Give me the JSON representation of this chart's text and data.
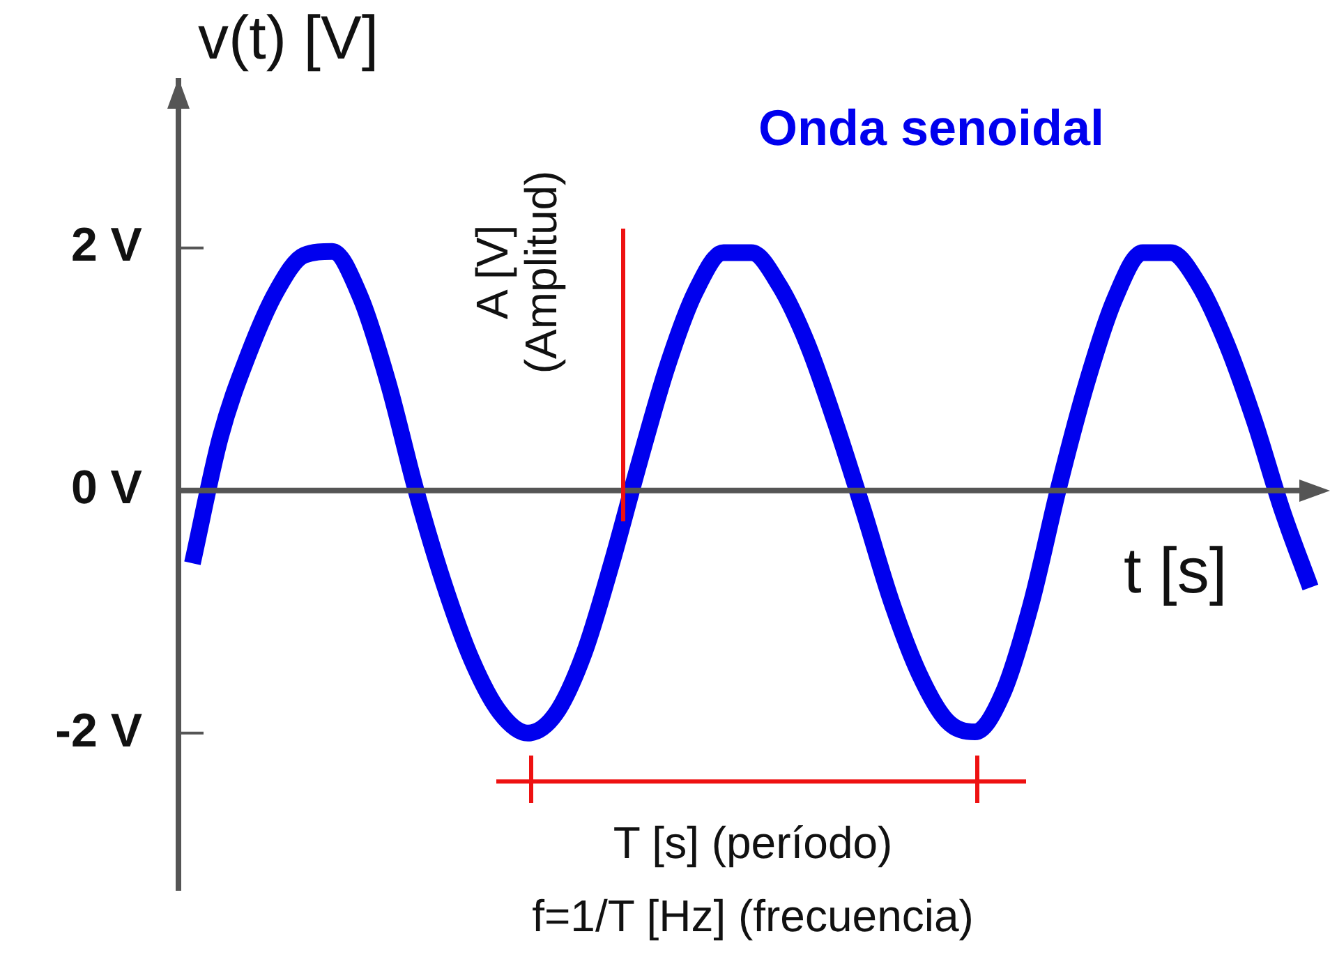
{
  "chart_data": {
    "type": "line",
    "title": "Onda senoidal",
    "ylabel": "v(t) [V]",
    "xlabel": "t [s]",
    "categories": [
      null,
      null,
      null,
      null,
      null,
      null,
      null,
      null,
      null,
      null,
      null,
      null,
      null,
      null,
      null,
      null,
      null,
      null,
      null,
      null,
      null,
      null,
      null,
      null,
      null,
      null,
      null,
      null,
      null,
      null,
      null,
      null,
      null,
      null,
      null,
      null,
      null,
      null,
      null,
      null,
      null
    ],
    "values": [
      -0.6,
      0.44,
      1.12,
      1.64,
      1.94,
      1.97,
      1.6,
      0.89,
      0,
      -0.77,
      -1.4,
      -1.83,
      -2.0,
      -1.84,
      -1.35,
      -0.6,
      0.24,
      1.03,
      1.64,
      1.96,
      1.96,
      1.69,
      1.21,
      0.56,
      -0.16,
      -0.91,
      -1.51,
      -1.9,
      -1.99,
      -1.67,
      -0.94,
      0.03,
      0.89,
      1.58,
      1.96,
      1.96,
      1.7,
      1.21,
      0.57,
      -0.17,
      -0.8
    ],
    "ref_lines": [
      {
        "axis": "y",
        "value": -2.4,
        "label": "T [s] (período)",
        "color": "#ee1111"
      }
    ],
    "color": "#0000ee",
    "marker": "none",
    "ylim": [
      -3.3,
      3.4
    ],
    "yticks": [
      {
        "value": 2,
        "label": "2 V"
      },
      {
        "value": 0,
        "label": "0 V"
      },
      {
        "value": -2,
        "label": "-2 V"
      }
    ],
    "annotations": [
      "A [V]\n(Amplitud)",
      "f=1/T [Hz] (frecuencia)"
    ]
  }
}
